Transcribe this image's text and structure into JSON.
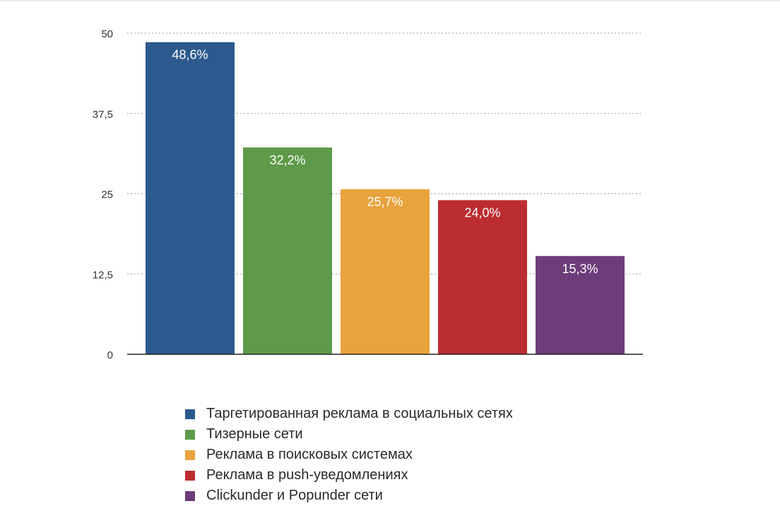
{
  "chart_data": {
    "type": "bar",
    "categories": [
      "Таргетированная реклама в социальных сетях",
      "Тизерные сети",
      "Реклама в поисковых системах",
      "Реклама в push-уведомлениях",
      "Clickunder и Popunder сети"
    ],
    "values": [
      48.6,
      32.2,
      25.7,
      24.0,
      15.3
    ],
    "data_labels": [
      "48,6%",
      "32,2%",
      "25,7%",
      "24,0%",
      "15,3%"
    ],
    "colors": [
      "#2d5a8e",
      "#5e9a49",
      "#e8a33d",
      "#bc2d30",
      "#6d3c7a"
    ],
    "ylim": [
      0,
      50
    ],
    "yticks": [
      0,
      12.5,
      25,
      37.5,
      50
    ],
    "ytick_labels": [
      "0",
      "12,5",
      "25",
      "37,5",
      "50"
    ],
    "grid": true,
    "legend_position": "bottom",
    "title": "",
    "xlabel": "",
    "ylabel": ""
  }
}
